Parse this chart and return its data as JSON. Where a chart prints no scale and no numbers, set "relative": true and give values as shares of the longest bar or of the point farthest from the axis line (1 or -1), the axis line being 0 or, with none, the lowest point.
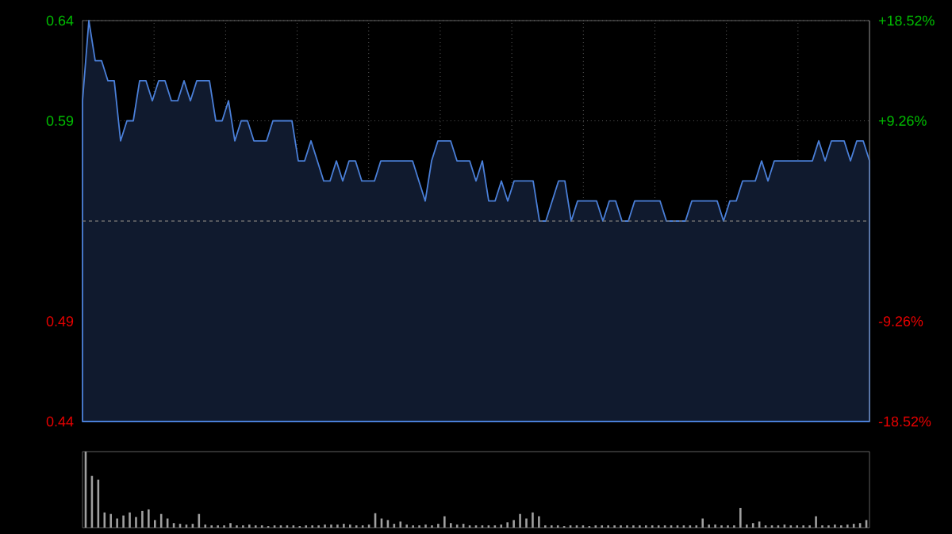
{
  "chart_data": [
    {
      "type": "area",
      "categories": [
        null,
        null,
        null,
        null,
        null,
        null,
        null,
        null,
        null,
        null,
        null,
        null,
        null,
        null,
        null,
        null,
        null,
        null,
        null,
        null,
        null,
        null,
        null,
        null,
        null,
        null,
        null,
        null,
        null,
        null,
        null,
        null,
        null,
        null,
        null,
        null,
        null,
        null,
        null,
        null,
        null,
        null,
        null,
        null,
        null,
        null,
        null,
        null,
        null,
        null,
        null,
        null,
        null,
        null,
        null,
        null,
        null,
        null,
        null,
        null,
        null,
        null,
        null,
        null,
        null,
        null,
        null,
        null,
        null,
        null,
        null,
        null,
        null,
        null,
        null,
        null,
        null,
        null,
        null,
        null,
        null,
        null,
        null,
        null,
        null,
        null,
        null,
        null,
        null,
        null,
        null,
        null,
        null,
        null,
        null,
        null,
        null,
        null,
        null,
        null,
        null,
        null,
        null,
        null,
        null,
        null,
        null,
        null,
        null,
        null,
        null,
        null,
        null,
        null,
        null,
        null,
        null,
        null,
        null,
        null,
        null,
        null,
        null,
        null,
        null
      ],
      "series": [
        {
          "color": "#4a7fd8",
          "values": [
            0.6,
            0.64,
            0.62,
            0.62,
            0.61,
            0.61,
            0.58,
            0.59,
            0.59,
            0.61,
            0.61,
            0.6,
            0.61,
            0.61,
            0.6,
            0.6,
            0.61,
            0.6,
            0.61,
            0.61,
            0.61,
            0.59,
            0.59,
            0.6,
            0.58,
            0.59,
            0.59,
            0.58,
            0.58,
            0.58,
            0.59,
            0.59,
            0.59,
            0.59,
            0.57,
            0.57,
            0.58,
            0.57,
            0.56,
            0.56,
            0.57,
            0.56,
            0.57,
            0.57,
            0.56,
            0.56,
            0.56,
            0.57,
            0.57,
            0.57,
            0.57,
            0.57,
            0.57,
            0.56,
            0.55,
            0.57,
            0.58,
            0.58,
            0.58,
            0.57,
            0.57,
            0.57,
            0.56,
            0.57,
            0.55,
            0.55,
            0.56,
            0.55,
            0.56,
            0.56,
            0.56,
            0.56,
            0.54,
            0.54,
            0.55,
            0.56,
            0.56,
            0.54,
            0.55,
            0.55,
            0.55,
            0.55,
            0.54,
            0.55,
            0.55,
            0.54,
            0.54,
            0.55,
            0.55,
            0.55,
            0.55,
            0.55,
            0.54,
            0.54,
            0.54,
            0.54,
            0.55,
            0.55,
            0.55,
            0.55,
            0.55,
            0.54,
            0.55,
            0.55,
            0.56,
            0.56,
            0.56,
            0.57,
            0.56,
            0.57,
            0.57,
            0.57,
            0.57,
            0.57,
            0.57,
            0.57,
            0.58,
            0.57,
            0.58,
            0.58,
            0.58,
            0.57,
            0.58,
            0.58,
            0.57
          ]
        }
      ],
      "ylim": [
        0.44,
        0.64
      ],
      "yticks": [
        0.44,
        0.49,
        0.59,
        0.64
      ],
      "y2lim": [
        -18.52,
        18.52
      ],
      "y2ticks": [
        {
          "value": -18.52,
          "label": "-18.52%"
        },
        {
          "value": -9.26,
          "label": "-9.26%"
        },
        {
          "value": 9.26,
          "label": "+9.26%"
        },
        {
          "value": 18.52,
          "label": "+18.52%"
        }
      ],
      "ref_lines": [
        {
          "axis": "y",
          "value": 0.54,
          "line_style": "dashed"
        }
      ],
      "grid": true
    },
    {
      "type": "bar",
      "relative": true,
      "color": "#a0a0a0",
      "categories": [
        null,
        null,
        null,
        null,
        null,
        null,
        null,
        null,
        null,
        null,
        null,
        null,
        null,
        null,
        null,
        null,
        null,
        null,
        null,
        null,
        null,
        null,
        null,
        null,
        null,
        null,
        null,
        null,
        null,
        null,
        null,
        null,
        null,
        null,
        null,
        null,
        null,
        null,
        null,
        null,
        null,
        null,
        null,
        null,
        null,
        null,
        null,
        null,
        null,
        null,
        null,
        null,
        null,
        null,
        null,
        null,
        null,
        null,
        null,
        null,
        null,
        null,
        null,
        null,
        null,
        null,
        null,
        null,
        null,
        null,
        null,
        null,
        null,
        null,
        null,
        null,
        null,
        null,
        null,
        null,
        null,
        null,
        null,
        null,
        null,
        null,
        null,
        null,
        null,
        null,
        null,
        null,
        null,
        null,
        null,
        null,
        null,
        null,
        null,
        null,
        null,
        null,
        null,
        null,
        null,
        null,
        null,
        null,
        null,
        null,
        null,
        null,
        null,
        null,
        null,
        null,
        null,
        null,
        null,
        null,
        null,
        null,
        null,
        null,
        null
      ],
      "values": [
        1.0,
        0.68,
        0.63,
        0.2,
        0.18,
        0.12,
        0.16,
        0.2,
        0.14,
        0.22,
        0.24,
        0.1,
        0.18,
        0.12,
        0.06,
        0.05,
        0.04,
        0.05,
        0.18,
        0.04,
        0.03,
        0.03,
        0.03,
        0.06,
        0.03,
        0.03,
        0.04,
        0.03,
        0.03,
        0.02,
        0.03,
        0.03,
        0.03,
        0.03,
        0.02,
        0.03,
        0.03,
        0.03,
        0.04,
        0.04,
        0.04,
        0.05,
        0.04,
        0.03,
        0.03,
        0.04,
        0.19,
        0.12,
        0.1,
        0.05,
        0.08,
        0.04,
        0.03,
        0.03,
        0.04,
        0.03,
        0.05,
        0.15,
        0.06,
        0.04,
        0.05,
        0.03,
        0.03,
        0.03,
        0.03,
        0.03,
        0.04,
        0.07,
        0.1,
        0.18,
        0.12,
        0.2,
        0.15,
        0.03,
        0.03,
        0.03,
        0.02,
        0.03,
        0.03,
        0.03,
        0.02,
        0.03,
        0.03,
        0.03,
        0.03,
        0.03,
        0.03,
        0.03,
        0.03,
        0.03,
        0.03,
        0.03,
        0.03,
        0.03,
        0.03,
        0.03,
        0.03,
        0.03,
        0.12,
        0.04,
        0.04,
        0.03,
        0.03,
        0.03,
        0.26,
        0.04,
        0.06,
        0.08,
        0.03,
        0.03,
        0.03,
        0.04,
        0.03,
        0.03,
        0.03,
        0.03,
        0.15,
        0.03,
        0.03,
        0.04,
        0.03,
        0.04,
        0.05,
        0.06,
        0.1
      ]
    }
  ]
}
